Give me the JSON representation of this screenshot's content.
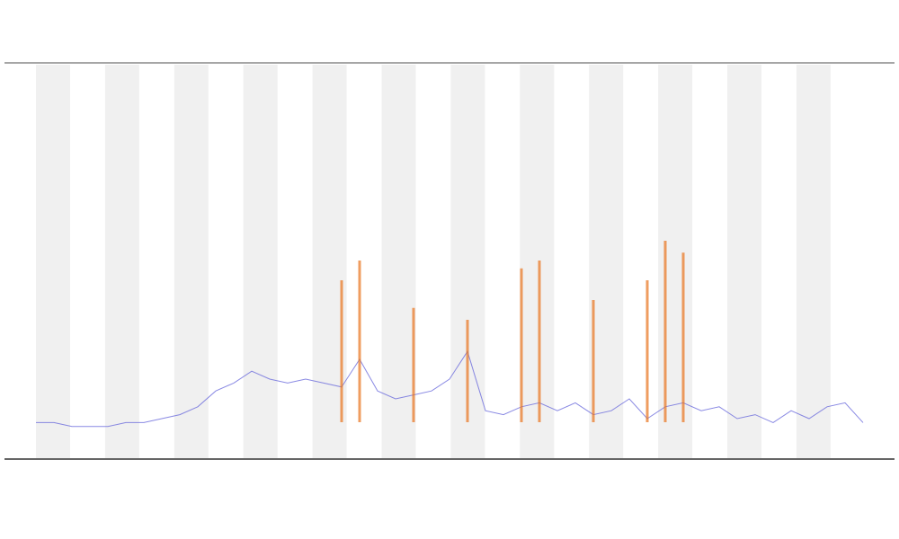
{
  "chart_data": {
    "type": "line",
    "ylim": [
      0,
      100
    ],
    "series": [
      {
        "color": "#6b6bdc",
        "style": "line",
        "values": [
          9,
          9,
          8,
          8,
          8,
          9,
          9,
          10,
          11,
          13,
          17,
          19,
          22,
          20,
          19,
          20,
          19,
          18,
          25,
          17,
          15,
          16,
          17,
          20,
          27,
          12,
          11,
          13,
          14,
          12,
          14,
          11,
          12,
          15,
          10,
          13,
          14,
          12,
          13,
          10,
          11,
          9,
          12,
          10,
          13,
          14,
          9
        ]
      },
      {
        "color": "#e8731c",
        "style": "spike",
        "values": [
          null,
          null,
          null,
          null,
          null,
          null,
          null,
          null,
          null,
          null,
          null,
          null,
          null,
          null,
          null,
          null,
          null,
          45,
          50,
          null,
          null,
          38,
          null,
          null,
          35,
          null,
          null,
          48,
          50,
          null,
          null,
          40,
          null,
          null,
          45,
          55,
          52,
          null,
          null,
          null,
          null,
          null,
          null,
          null,
          null,
          null,
          null
        ]
      }
    ]
  }
}
